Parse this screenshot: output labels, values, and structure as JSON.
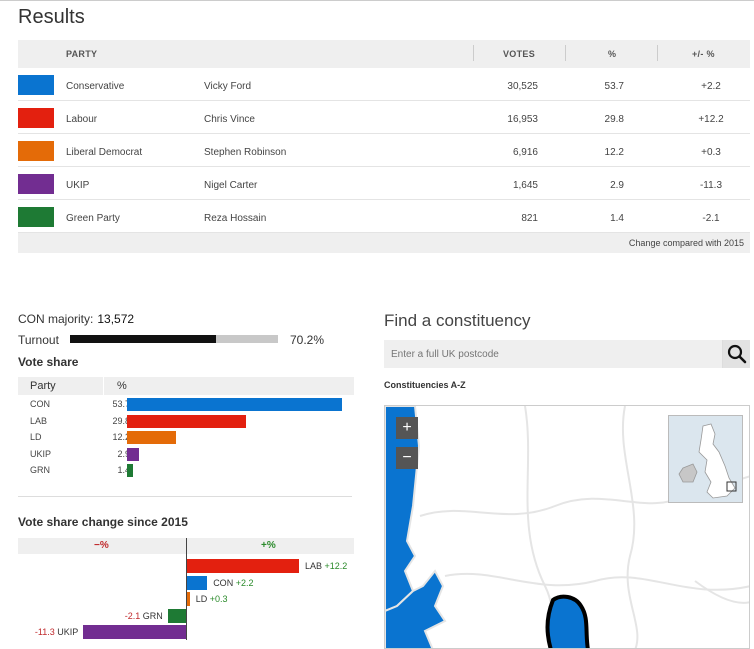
{
  "results": {
    "title": "Results",
    "headers": {
      "party": "PARTY",
      "votes": "VOTES",
      "pct": "%",
      "change": "+/- %"
    },
    "rows": [
      {
        "party": "Conservative",
        "candidate": "Vicky Ford",
        "votes": "30,525",
        "pct": "53.7",
        "change": "+2.2",
        "color": "#0a74d0"
      },
      {
        "party": "Labour",
        "candidate": "Chris Vince",
        "votes": "16,953",
        "pct": "29.8",
        "change": "+12.2",
        "color": "#e3200f"
      },
      {
        "party": "Liberal Democrat",
        "candidate": "Stephen Robinson",
        "votes": "6,916",
        "pct": "12.2",
        "change": "+0.3",
        "color": "#e46b08"
      },
      {
        "party": "UKIP",
        "candidate": "Nigel Carter",
        "votes": "1,645",
        "pct": "2.9",
        "change": "-11.3",
        "color": "#722d91"
      },
      {
        "party": "Green Party",
        "candidate": "Reza Hossain",
        "votes": "821",
        "pct": "1.4",
        "change": "-2.1",
        "color": "#1e7a34"
      }
    ],
    "footnote": "Change compared with 2015"
  },
  "summary": {
    "majority_label": "CON majority:",
    "majority_value": "13,572",
    "turnout_label": "Turnout",
    "turnout_value": "70.2%",
    "turnout_fraction": 0.702
  },
  "vote_share": {
    "title": "Vote share",
    "col_party": "Party",
    "col_pct": "%",
    "rows": [
      {
        "party": "CON",
        "pct": "53.7",
        "value": 53.7,
        "color": "#0a74d0"
      },
      {
        "party": "LAB",
        "pct": "29.8",
        "value": 29.8,
        "color": "#e3200f"
      },
      {
        "party": "LD",
        "pct": "12.2",
        "value": 12.2,
        "color": "#e46b08"
      },
      {
        "party": "UKIP",
        "pct": "2.9",
        "value": 2.9,
        "color": "#722d91"
      },
      {
        "party": "GRN",
        "pct": "1.4",
        "value": 1.4,
        "color": "#1e7a34"
      }
    ]
  },
  "vote_change": {
    "title": "Vote share change since 2015",
    "neg_label": "−%",
    "pos_label": "+%",
    "rows": [
      {
        "party": "LAB",
        "change": "+12.2",
        "value": 12.2,
        "color": "#e3200f"
      },
      {
        "party": "CON",
        "change": "+2.2",
        "value": 2.2,
        "color": "#0a74d0"
      },
      {
        "party": "LD",
        "change": "+0.3",
        "value": 0.3,
        "color": "#e46b08"
      },
      {
        "party": "GRN",
        "change": "-2.1",
        "value": -2.1,
        "color": "#1e7a34"
      },
      {
        "party": "UKIP",
        "change": "-11.3",
        "value": -11.3,
        "color": "#722d91"
      }
    ]
  },
  "finder": {
    "title": "Find a constituency",
    "placeholder": "Enter a full UK postcode",
    "az_link": "Constituencies A-Z",
    "search_icon": "magnifier-icon",
    "zoom_in": "+",
    "zoom_out": "−"
  }
}
